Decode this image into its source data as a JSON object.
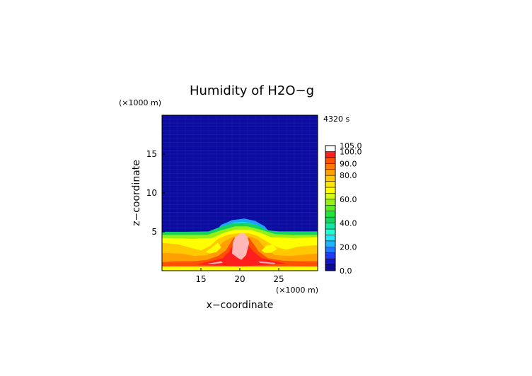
{
  "chart_data": {
    "type": "heatmap",
    "title": "Humidity of H2O−g",
    "time_label": "4320 s",
    "xlabel": "x−coordinate",
    "ylabel": "z−coordinate",
    "x_unit": "(×1000 m)",
    "z_unit": "(×1000 m)",
    "xlim": [
      10.0,
      30.0
    ],
    "ylim": [
      0.0,
      20.0
    ],
    "x_ticks": [
      "15",
      "20",
      "25"
    ],
    "x_tick_values": [
      15,
      20,
      25
    ],
    "z_ticks": [
      "5",
      "10",
      "15"
    ],
    "z_tick_values": [
      5,
      10,
      15
    ],
    "colorbar": {
      "levels": [
        0,
        5,
        10,
        15,
        20,
        25,
        30,
        35,
        40,
        45,
        50,
        55,
        60,
        65,
        70,
        75,
        80,
        85,
        90,
        95,
        100,
        105
      ],
      "colors": [
        "#0a0a9c",
        "#1414c8",
        "#1e3cf0",
        "#1e78ff",
        "#1eb4ff",
        "#1ee6ff",
        "#1effd2",
        "#14e6a0",
        "#14d264",
        "#1ee63c",
        "#5af01e",
        "#96f014",
        "#d2fa14",
        "#ffff00",
        "#ffe600",
        "#ffc800",
        "#ffa000",
        "#ff7800",
        "#ff5000",
        "#ff1e1e",
        "#ffffff"
      ],
      "tick_labels": [
        "0.0",
        "20.0",
        "40.0",
        "60.0",
        "80.0",
        "90.0",
        "100.0",
        "105.0"
      ],
      "tick_values": [
        0,
        20,
        40,
        60,
        80,
        90,
        100,
        105
      ]
    }
  }
}
